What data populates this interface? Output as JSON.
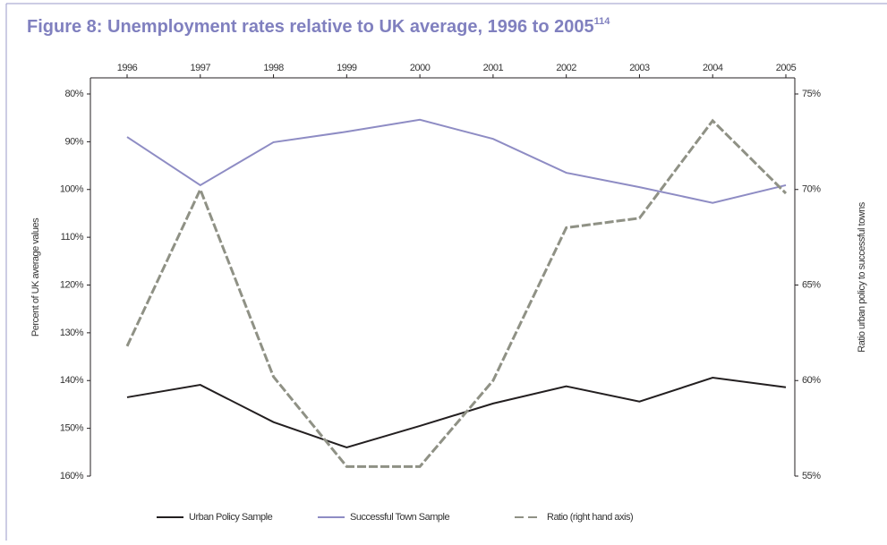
{
  "chart_data": {
    "type": "line",
    "title": "Figure 8: Unemployment rates relative to UK average, 1996 to 2005",
    "title_note": "114",
    "y_label": "Percent of UK average values",
    "y2_label": "Ratio urban policy to successful towns",
    "categories": [
      "1996",
      "1997",
      "1998",
      "1999",
      "2000",
      "2001",
      "2002",
      "2003",
      "2004",
      "2005"
    ],
    "ylim": [
      160,
      80
    ],
    "yticks": [
      {
        "value": 80,
        "label": "80%"
      },
      {
        "value": 90,
        "label": "90%"
      },
      {
        "value": 100,
        "label": "100%"
      },
      {
        "value": 110,
        "label": "110%"
      },
      {
        "value": 120,
        "label": "120%"
      },
      {
        "value": 130,
        "label": "130%"
      },
      {
        "value": 140,
        "label": "140%"
      },
      {
        "value": 150,
        "label": "150%"
      },
      {
        "value": 160,
        "label": "160%"
      }
    ],
    "y2lim": [
      55,
      75
    ],
    "y2ticks": [
      {
        "value": 55,
        "label": "55%"
      },
      {
        "value": 60,
        "label": "60%"
      },
      {
        "value": 65,
        "label": "65%"
      },
      {
        "value": 70,
        "label": "70%"
      },
      {
        "value": 75,
        "label": "75%"
      }
    ],
    "series": [
      {
        "name": "Urban Policy Sample",
        "color": "#231f20",
        "values": [
          143.5,
          140.9,
          148.7,
          154,
          149.5,
          144.8,
          141.2,
          144.4,
          139.4,
          141.4
        ]
      },
      {
        "name": "Successful Town Sample",
        "color": "#8e8cc4",
        "values": [
          89,
          99.1,
          90.1,
          87.9,
          85.4,
          89.4,
          96.5,
          99.5,
          102.8,
          99.1
        ]
      },
      {
        "name": "Ratio (right hand axis)",
        "color": "#8f9185",
        "axis": "y2",
        "dashed": true,
        "values": [
          61.8,
          70.0,
          60.2,
          55.5,
          55.5,
          60.0,
          68.0,
          68.5,
          73.6,
          69.8
        ]
      }
    ]
  }
}
